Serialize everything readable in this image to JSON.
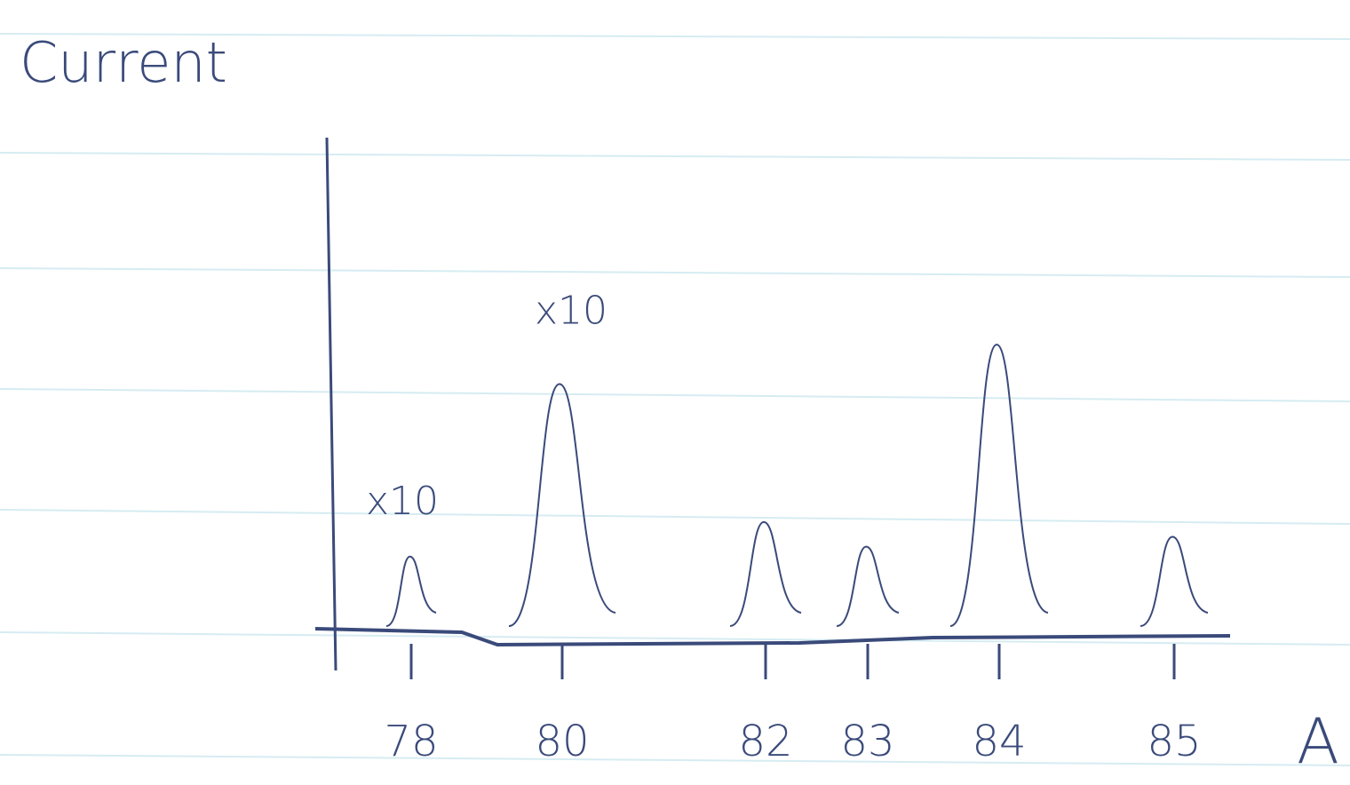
{
  "chart_data": {
    "type": "spectrum",
    "title": "Current",
    "x_label": "A",
    "categories": [
      "78",
      "80",
      "82",
      "83",
      "84",
      "85"
    ],
    "values": [
      15,
      50,
      22,
      17,
      58,
      19
    ],
    "annotations": [
      "x10",
      "x10"
    ],
    "color": "#3a4a7a",
    "ylim": [
      0,
      100
    ]
  }
}
